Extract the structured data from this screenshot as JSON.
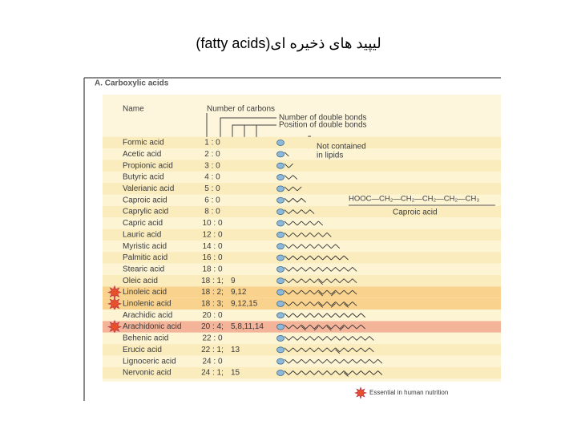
{
  "title": "لیپید های ذخیره ای(fatty acids)",
  "figure": {
    "heading": "A. Carboxylic acids",
    "column_name": "Name",
    "column_carbons": "Number of carbons",
    "column_double_bonds": "Number of double bonds",
    "column_positions": "Position of double bonds",
    "note_lines": [
      "Not contained",
      "in lipids"
    ],
    "formula": "HOOC—CH₂—CH₂—CH₂—CH₂—CH₃",
    "formula_caption": "Caproic acid",
    "legend": "Essential in human nutrition",
    "rows": [
      {
        "name": "Formic acid",
        "carbons": "1 : 0"
      },
      {
        "name": "Acetic acid",
        "carbons": "2 : 0"
      },
      {
        "name": "Propionic acid",
        "carbons": "3 : 0"
      },
      {
        "name": "Butyric acid",
        "carbons": "4 : 0"
      },
      {
        "name": "Valerianic acid",
        "carbons": "5 : 0"
      },
      {
        "name": "Caproic acid",
        "carbons": "6 : 0"
      },
      {
        "name": "Caprylic acid",
        "carbons": "8 : 0"
      },
      {
        "name": "Capric acid",
        "carbons": "10 : 0"
      },
      {
        "name": "Lauric acid",
        "carbons": "12 : 0"
      },
      {
        "name": "Myristic acid",
        "carbons": "14 : 0"
      },
      {
        "name": "Palmitic acid",
        "carbons": "16 : 0"
      },
      {
        "name": "Stearic acid",
        "carbons": "18 : 0"
      },
      {
        "name": "Oleic acid",
        "carbons": "18 : 1;",
        "positions": "9"
      },
      {
        "name": "Linoleic acid",
        "carbons": "18 : 2;",
        "positions": "9,12",
        "essential": true,
        "color": "#f9d38e"
      },
      {
        "name": "Linolenic acid",
        "carbons": "18 : 3;",
        "positions": "9,12,15",
        "essential": true,
        "color": "#f9d38e"
      },
      {
        "name": "Arachidic acid",
        "carbons": "20 : 0"
      },
      {
        "name": "Arachidonic acid",
        "carbons": "20 : 4;",
        "positions": "5,8,11,14",
        "essential": true,
        "color": "#f3b49a"
      },
      {
        "name": "Behenic acid",
        "carbons": "22 : 0"
      },
      {
        "name": "Erucic acid",
        "carbons": "22 : 1;",
        "positions": "13"
      },
      {
        "name": "Lignoceric acid",
        "carbons": "24 : 0"
      },
      {
        "name": "Nervonic acid",
        "carbons": "24 : 1;",
        "positions": "15"
      }
    ]
  }
}
